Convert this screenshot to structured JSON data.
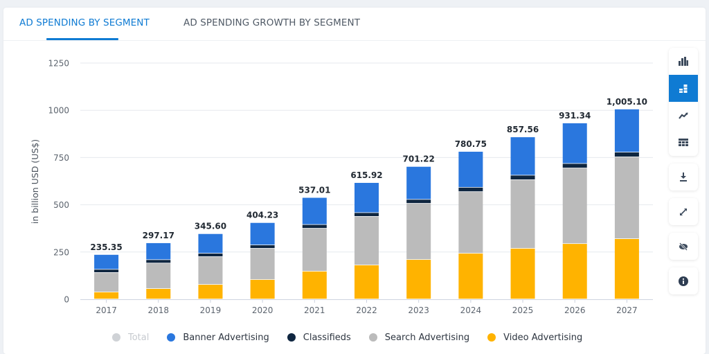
{
  "tabs": [
    {
      "label": "AD SPENDING BY SEGMENT",
      "active": true
    },
    {
      "label": "AD SPENDING GROWTH BY SEGMENT",
      "active": false
    }
  ],
  "toolbar": {
    "chart_types": [
      {
        "name": "bar-chart-icon",
        "active": false
      },
      {
        "name": "stacked-bar-icon",
        "active": true
      },
      {
        "name": "trend-line-icon",
        "active": false
      },
      {
        "name": "table-icon",
        "active": false
      }
    ],
    "actions": [
      {
        "name": "download-icon"
      },
      {
        "name": "fullscreen-icon"
      },
      {
        "name": "hide-icon"
      },
      {
        "name": "info-icon"
      }
    ]
  },
  "colors": {
    "accent": "#0f7bd3",
    "banner": "#2a77de",
    "classifieds": "#0f2640",
    "search": "#bbbbbb",
    "video": "#ffb300",
    "total_disabled": "#cfd2d6"
  },
  "chart_data": {
    "type": "bar",
    "stacked": true,
    "title": "",
    "xlabel": "",
    "ylabel": "in billion USD (US$)",
    "ylim": [
      0,
      1250
    ],
    "yticks": [
      "0",
      "250",
      "500",
      "750",
      "1000",
      "1250"
    ],
    "ytick_values": [
      0,
      250,
      500,
      750,
      1000,
      1250
    ],
    "grid": true,
    "legend_position": "bottom",
    "categories": [
      "2017",
      "2018",
      "2019",
      "2020",
      "2021",
      "2022",
      "2023",
      "2024",
      "2025",
      "2026",
      "2027"
    ],
    "totals": [
      235.35,
      297.17,
      345.6,
      404.23,
      537.01,
      615.92,
      701.22,
      780.75,
      857.56,
      931.34,
      1005.1
    ],
    "total_labels": [
      "235.35",
      "297.17",
      "345.60",
      "404.23",
      "537.01",
      "615.92",
      "701.22",
      "780.75",
      "857.56",
      "931.34",
      "1,005.10"
    ],
    "legend": [
      {
        "label": "Total",
        "color": "#cfd2d6",
        "disabled": true
      },
      {
        "label": "Banner Advertising",
        "color": "#2a77de",
        "disabled": false
      },
      {
        "label": "Classifieds",
        "color": "#0f2640",
        "disabled": false
      },
      {
        "label": "Search Advertising",
        "color": "#bbbbbb",
        "disabled": false
      },
      {
        "label": "Video Advertising",
        "color": "#ffb300",
        "disabled": false
      }
    ],
    "series": [
      {
        "name": "Video Advertising",
        "color": "#ffb300",
        "values": [
          37,
          55,
          77,
          103,
          147,
          180,
          209,
          242,
          268,
          293,
          319
        ]
      },
      {
        "name": "Search Advertising",
        "color": "#bbbbbb",
        "values": [
          103,
          135,
          147,
          165,
          227,
          257,
          297,
          326,
          363,
          400,
          433
        ]
      },
      {
        "name": "Classifieds",
        "color": "#0f2640",
        "values": [
          17,
          18,
          18,
          18,
          20,
          20,
          21,
          23,
          24,
          24,
          25
        ]
      },
      {
        "name": "Banner Advertising",
        "color": "#2a77de",
        "values": [
          78.35,
          89.17,
          103.6,
          118.23,
          143.01,
          158.92,
          174.22,
          189.75,
          202.56,
          214.34,
          228.1
        ]
      }
    ]
  }
}
